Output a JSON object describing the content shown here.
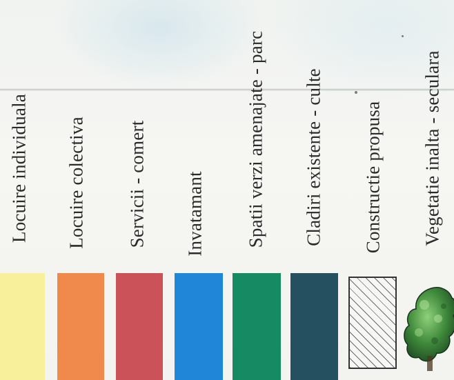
{
  "legend": {
    "items": [
      {
        "label": "Locuire individuala",
        "color": "#f8f09a"
      },
      {
        "label": "Locuire colectiva",
        "color": "#f08a4c"
      },
      {
        "label": "Servicii - comert",
        "color": "#cc5259"
      },
      {
        "label": "Invatamant",
        "color": "#1f86d8"
      },
      {
        "label": "Spatii verzi amenajate - parc",
        "color": "#168a63"
      },
      {
        "label": "Cladiri existente - culte",
        "color": "#24505f"
      },
      {
        "label": "Constructie propusa",
        "pattern": "diagonal-hatch"
      },
      {
        "label": "Vegetatie inalta - seculara",
        "icon": "tree-icon"
      }
    ]
  }
}
